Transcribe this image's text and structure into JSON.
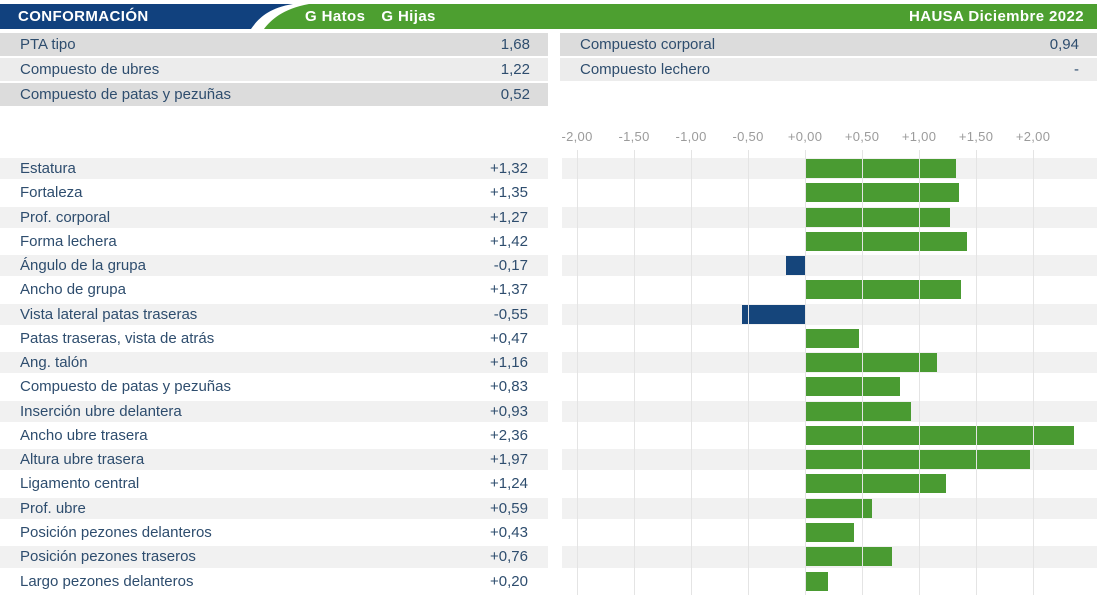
{
  "header": {
    "title": "CONFORMACIÓN",
    "legend": [
      "G Hatos",
      "G Hijas"
    ],
    "edition": "HAUSA Diciembre 2022",
    "colors": {
      "navy": "#11417e",
      "green": "#4d9f30"
    }
  },
  "summary_left": {
    "rows": [
      {
        "label": "PTA tipo",
        "value": "1,68"
      },
      {
        "label": "Compuesto de ubres",
        "value": "1,22"
      },
      {
        "label": "Compuesto de patas y pezuñas",
        "value": "0,52"
      }
    ]
  },
  "summary_right": {
    "rows": [
      {
        "label": "Compuesto corporal",
        "value": "0,94"
      },
      {
        "label": "Compuesto lechero",
        "value": "-"
      }
    ]
  },
  "chart_data": {
    "type": "bar",
    "orientation": "horizontal",
    "title": "CONFORMACIÓN — HAUSA Diciembre 2022",
    "axis": {
      "min": -2.0,
      "max": 2.0,
      "step": 0.5,
      "tick_labels": [
        "-2,00",
        "-1,50",
        "-1,00",
        "-0,50",
        "+0,00",
        "+0,50",
        "+1,00",
        "+1,50",
        "+2,00"
      ],
      "grid": true
    },
    "categories": [
      "Estatura",
      "Fortaleza",
      "Prof. corporal",
      "Forma lechera",
      "Ángulo de la grupa",
      "Ancho de grupa",
      "Vista lateral patas traseras",
      "Patas traseras, vista de atrás",
      "Ang. talón",
      "Compuesto de patas y pezuñas",
      "Inserción ubre delantera",
      "Ancho ubre trasera",
      "Altura ubre trasera",
      "Ligamento central",
      "Prof. ubre",
      "Posición pezones delanteros",
      "Posición pezones traseros",
      "Largo pezones delanteros"
    ],
    "values": [
      1.32,
      1.35,
      1.27,
      1.42,
      -0.17,
      1.37,
      -0.55,
      0.47,
      1.16,
      0.83,
      0.93,
      2.36,
      1.97,
      1.24,
      0.59,
      0.43,
      0.76,
      0.2
    ],
    "value_labels": [
      "+1,32",
      "+1,35",
      "+1,27",
      "+1,42",
      "-0,17",
      "+1,37",
      "-0,55",
      "+0,47",
      "+1,16",
      "+0,83",
      "+0,93",
      "+2,36",
      "+1,97",
      "+1,24",
      "+0,59",
      "+0,43",
      "+0,76",
      "+0,20"
    ],
    "positive_color": "#4a9b32",
    "negative_color": "#15457b",
    "plot_range": {
      "min": -2.132,
      "max": 2.561
    }
  }
}
